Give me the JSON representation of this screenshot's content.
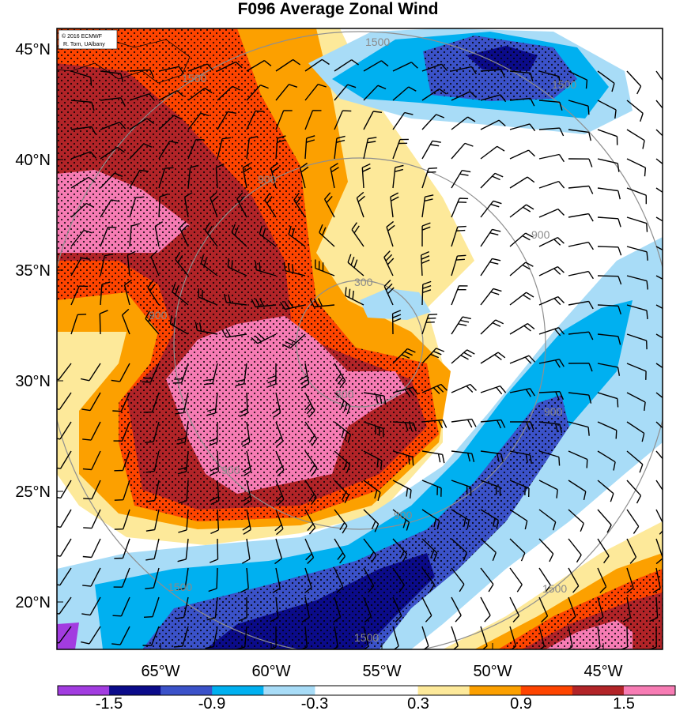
{
  "title": "F096 Average Zonal Wind",
  "credit": {
    "line1": "© 2016 ECMWF",
    "line2": "R. Torn, UAlbany"
  },
  "axes": {
    "lat_labels": [
      "45°N",
      "40°N",
      "35°N",
      "30°N",
      "25°N",
      "20°N"
    ],
    "lon_labels": [
      "65°W",
      "60°W",
      "55°W",
      "50°W",
      "45°W"
    ]
  },
  "contour_labels": {
    "c300": "300",
    "c900": "900",
    "c1500": "1500"
  },
  "colorbar": {
    "colors": [
      "#a23ce0",
      "#0b0b8a",
      "#3b52c9",
      "#00b0f0",
      "#a8dcf7",
      "#ffffff",
      "#ffffff",
      "#fde99a",
      "#fca000",
      "#fe4400",
      "#b22428",
      "#f77cb4"
    ],
    "tick_labels": [
      "-1.5",
      "-0.9",
      "-0.3",
      "0.3",
      "0.9",
      "1.5"
    ]
  },
  "colors": {
    "contour_gray": "#8f8f8f",
    "barb": "#000000"
  }
}
